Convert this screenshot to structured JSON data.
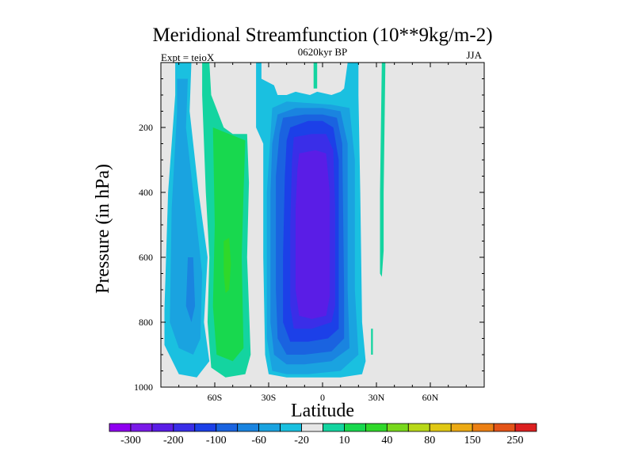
{
  "chart_data": {
    "type": "heatmap",
    "title": "Meridional Streamfunction (10**9kg/m-2)",
    "left_label": "Expt = teioX",
    "center_label": "0620kyr BP",
    "right_label": "JJA",
    "xlabel": "Latitude",
    "ylabel": "Pressure (in hPa)",
    "xlim": [
      -90,
      90
    ],
    "ylim": [
      1000,
      0
    ],
    "x_ticks": [
      {
        "value": -60,
        "label": "60S"
      },
      {
        "value": -30,
        "label": "30S"
      },
      {
        "value": 0,
        "label": "0"
      },
      {
        "value": 30,
        "label": "30N"
      },
      {
        "value": 60,
        "label": "60N"
      }
    ],
    "y_ticks": [
      {
        "value": 200,
        "label": "200"
      },
      {
        "value": 400,
        "label": "400"
      },
      {
        "value": 600,
        "label": "600"
      },
      {
        "value": 800,
        "label": "800"
      },
      {
        "value": 1000,
        "label": "1000"
      }
    ],
    "background_color": "#e6e6e6",
    "colorbar": {
      "colors": [
        "#8f00f0",
        "#7a1ae8",
        "#5a1de6",
        "#3a2ee8",
        "#1c40e8",
        "#1a63e0",
        "#1a84e0",
        "#1aa3e0",
        "#1ac0e0",
        "#e6e6e6",
        "#14d4a0",
        "#18d84e",
        "#30d82a",
        "#78d81c",
        "#b8d818",
        "#e0c814",
        "#ecaa14",
        "#ec8014",
        "#e45418",
        "#dc2020"
      ],
      "labels": [
        "-300",
        "-200",
        "-100",
        "-60",
        "-20",
        "10",
        "40",
        "80",
        "150",
        "250"
      ]
    },
    "levels": [
      "-300",
      "-250",
      "-200",
      "-150",
      "-100",
      "-80",
      "-60",
      "-40",
      "-20",
      "-10",
      "10",
      "20",
      "40",
      "60",
      "80",
      "100",
      "150",
      "200",
      "250",
      "300"
    ],
    "contour_regions": [
      {
        "name": "sh-outer-cell",
        "level": "-20",
        "color": "#1ac0e0",
        "points": [
          [
            -82,
            0
          ],
          [
            -73,
            0
          ],
          [
            -74,
            15
          ],
          [
            -69,
            40
          ],
          [
            -64,
            60
          ],
          [
            -66,
            80
          ],
          [
            -63,
            92
          ],
          [
            -70,
            97
          ],
          [
            -80,
            96
          ],
          [
            -88,
            87
          ],
          [
            -88,
            76
          ],
          [
            -86,
            40
          ],
          [
            -82,
            10
          ]
        ]
      },
      {
        "name": "sh-outer-cell-core",
        "level": "-40",
        "color": "#1aa3e0",
        "points": [
          [
            -81,
            5
          ],
          [
            -75,
            5
          ],
          [
            -76,
            20
          ],
          [
            -71,
            45
          ],
          [
            -67,
            65
          ],
          [
            -68,
            85
          ],
          [
            -72,
            90
          ],
          [
            -80,
            88
          ],
          [
            -85,
            80
          ],
          [
            -84,
            45
          ],
          [
            -81,
            15
          ]
        ]
      },
      {
        "name": "sh-outer-cell-inner",
        "level": "-60",
        "color": "#1a84e0",
        "points": [
          [
            -75,
            60
          ],
          [
            -72,
            60
          ],
          [
            -71,
            75
          ],
          [
            -73,
            80
          ],
          [
            -76,
            75
          ]
        ]
      },
      {
        "name": "sh-ferrel-cell",
        "level": "10",
        "color": "#14d4a0",
        "points": [
          [
            -67,
            0
          ],
          [
            -63,
            0
          ],
          [
            -62,
            10
          ],
          [
            -55,
            20
          ],
          [
            -50,
            22
          ],
          [
            -42,
            22
          ],
          [
            -41,
            37
          ],
          [
            -42,
            60
          ],
          [
            -40,
            90
          ],
          [
            -43,
            96
          ],
          [
            -54,
            97
          ],
          [
            -62,
            94
          ],
          [
            -64,
            80
          ],
          [
            -63,
            60
          ],
          [
            -65,
            40
          ],
          [
            -67,
            10
          ]
        ]
      },
      {
        "name": "sh-ferrel-cell-core",
        "level": "20",
        "color": "#18d84e",
        "points": [
          [
            -61,
            20
          ],
          [
            -43,
            24
          ],
          [
            -44,
            40
          ],
          [
            -45,
            60
          ],
          [
            -44,
            88
          ],
          [
            -50,
            92
          ],
          [
            -59,
            90
          ],
          [
            -61,
            75
          ],
          [
            -60,
            50
          ]
        ]
      },
      {
        "name": "sh-ferrel-cell-inner",
        "level": "40",
        "color": "#30d82a",
        "points": [
          [
            -55,
            55
          ],
          [
            -52,
            54
          ],
          [
            -51,
            62
          ],
          [
            -52,
            70
          ],
          [
            -54,
            71
          ],
          [
            -55,
            65
          ]
        ]
      },
      {
        "name": "sh-hadley-cell",
        "level": "-10",
        "color": "#1ac0e0",
        "points": [
          [
            -37,
            0
          ],
          [
            -34,
            0
          ],
          [
            -34,
            5
          ],
          [
            -27,
            7
          ],
          [
            -25,
            10
          ],
          [
            -20,
            10
          ],
          [
            -15,
            9
          ],
          [
            -7,
            10
          ],
          [
            -3,
            9
          ],
          [
            5,
            10
          ],
          [
            10,
            9
          ],
          [
            12,
            8
          ],
          [
            14,
            0
          ],
          [
            20,
            0
          ],
          [
            20,
            10
          ],
          [
            21,
            40
          ],
          [
            22,
            80
          ],
          [
            24,
            92
          ],
          [
            22,
            96
          ],
          [
            10,
            97
          ],
          [
            -5,
            97
          ],
          [
            -20,
            97
          ],
          [
            -30,
            96
          ],
          [
            -32,
            90
          ],
          [
            -33,
            60
          ],
          [
            -33,
            25
          ],
          [
            -37,
            20
          ],
          [
            -37,
            10
          ]
        ]
      },
      {
        "name": "sh-hadley-cell-20",
        "level": "-20",
        "color": "#1aa3e0",
        "points": [
          [
            -28,
            14
          ],
          [
            -20,
            12
          ],
          [
            -7,
            12.5
          ],
          [
            5,
            13
          ],
          [
            15,
            14
          ],
          [
            18,
            30
          ],
          [
            18,
            70
          ],
          [
            20,
            90
          ],
          [
            10,
            95
          ],
          [
            -8,
            96
          ],
          [
            -20,
            96
          ],
          [
            -28,
            95
          ],
          [
            -31,
            85
          ],
          [
            -31,
            40
          ]
        ]
      },
      {
        "name": "sh-hadley-cell-40",
        "level": "-40",
        "color": "#1a84e0",
        "points": [
          [
            -25,
            16
          ],
          [
            -15,
            14
          ],
          [
            0,
            14
          ],
          [
            10,
            15
          ],
          [
            14,
            25
          ],
          [
            14,
            70
          ],
          [
            15,
            88
          ],
          [
            5,
            92
          ],
          [
            -10,
            93
          ],
          [
            -20,
            93
          ],
          [
            -27,
            90
          ],
          [
            -29,
            80
          ],
          [
            -29,
            40
          ],
          [
            -28,
            25
          ]
        ]
      },
      {
        "name": "sh-hadley-cell-60",
        "level": "-60",
        "color": "#1a63e0",
        "points": [
          [
            -22,
            17
          ],
          [
            -10,
            16
          ],
          [
            0,
            16
          ],
          [
            8,
            17
          ],
          [
            11,
            25
          ],
          [
            12,
            70
          ],
          [
            12,
            85
          ],
          [
            5,
            89
          ],
          [
            -10,
            90
          ],
          [
            -20,
            90
          ],
          [
            -25,
            85
          ],
          [
            -26,
            70
          ],
          [
            -26,
            35
          ],
          [
            -24,
            22
          ]
        ]
      },
      {
        "name": "sh-hadley-cell-80",
        "level": "-80",
        "color": "#1c40e8",
        "points": [
          [
            -18,
            20
          ],
          [
            -8,
            18
          ],
          [
            0,
            18
          ],
          [
            6,
            20
          ],
          [
            9,
            30
          ],
          [
            9,
            70
          ],
          [
            9,
            82
          ],
          [
            3,
            85
          ],
          [
            -8,
            86
          ],
          [
            -18,
            86
          ],
          [
            -22,
            80
          ],
          [
            -22,
            60
          ],
          [
            -21,
            35
          ],
          [
            -20,
            24
          ]
        ]
      },
      {
        "name": "sh-hadley-cell-100",
        "level": "-100",
        "color": "#3a2ee8",
        "points": [
          [
            -16,
            23
          ],
          [
            -6,
            22
          ],
          [
            2,
            22
          ],
          [
            6,
            27
          ],
          [
            7,
            45
          ],
          [
            7,
            75
          ],
          [
            5,
            80
          ],
          [
            -6,
            82
          ],
          [
            -16,
            82
          ],
          [
            -18,
            75
          ],
          [
            -18,
            50
          ],
          [
            -17,
            30
          ]
        ]
      },
      {
        "name": "sh-hadley-cell-150",
        "level": "-150",
        "color": "#5a1de6",
        "points": [
          [
            -13,
            28
          ],
          [
            -4,
            27
          ],
          [
            2,
            28
          ],
          [
            4,
            40
          ],
          [
            4,
            72
          ],
          [
            2,
            78
          ],
          [
            -6,
            79
          ],
          [
            -13,
            78
          ],
          [
            -15,
            70
          ],
          [
            -15,
            45
          ],
          [
            -14,
            33
          ]
        ]
      },
      {
        "name": "nh-polar-strip",
        "level": "10",
        "color": "#14d4a0",
        "points": [
          [
            -5,
            0
          ],
          [
            -3,
            0
          ],
          [
            -3,
            8
          ],
          [
            -5,
            8
          ]
        ]
      },
      {
        "name": "nh-streak",
        "level": "10",
        "color": "#14d4a0",
        "points": [
          [
            33,
            0
          ],
          [
            35,
            0
          ],
          [
            34,
            40
          ],
          [
            34,
            58
          ],
          [
            33,
            66
          ],
          [
            32,
            65
          ],
          [
            32,
            40
          ]
        ]
      },
      {
        "name": "nh-streak-small",
        "level": "10",
        "color": "#14d4a0",
        "points": [
          [
            27,
            82
          ],
          [
            28,
            82
          ],
          [
            28,
            90
          ],
          [
            27,
            90
          ]
        ]
      }
    ]
  }
}
